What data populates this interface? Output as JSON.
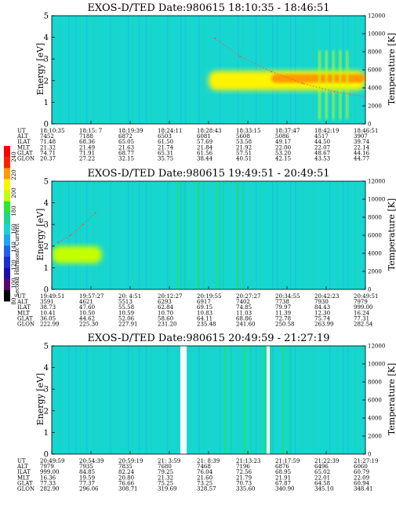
{
  "colorbar": {
    "label": "Second Harmonic Current",
    "ticks": [
      "240",
      "220",
      "200",
      "180",
      "160",
      "140",
      "120",
      "100",
      "80"
    ],
    "colors": [
      "#000000",
      "#5a0070",
      "#1d0bb0",
      "#1b2cd8",
      "#1e60f0",
      "#1aa6f2",
      "#17d6d0",
      "#18d88a",
      "#28e830",
      "#c4ff00",
      "#fff400",
      "#ff9a00",
      "#ff2200",
      "#ff0000"
    ]
  },
  "panels": [
    {
      "title": "EXOS-D/TED   Date:980615  18:10:35 - 18:46:51",
      "ylabel": "Energy [eV]",
      "y2label": "Temperature [K]",
      "yticks": [
        "0",
        "1",
        "2",
        "3",
        "4",
        "5"
      ],
      "y2ticks": [
        "0",
        "2000",
        "4000",
        "6000",
        "8000",
        "10000",
        "12000"
      ],
      "row_labels": [
        "UT",
        "ALT",
        "ILAT",
        "MLT",
        "GLAT",
        "GLON"
      ],
      "columns": [
        [
          "18:10:35",
          "7452",
          "71.48",
          "21.32",
          "74.71",
          "20.37"
        ],
        [
          "18:15: 7",
          "7188",
          "68.36",
          "21.49",
          "71.91",
          "27.22"
        ],
        [
          "18:19:39",
          "6872",
          "65.05",
          "21.63",
          "68.77",
          "32.15"
        ],
        [
          "18:24:11",
          "6503",
          "61.50",
          "21.74",
          "65.31",
          "35.75"
        ],
        [
          "18:28:43",
          "6081",
          "57.69",
          "21.84",
          "61.56",
          "38.44"
        ],
        [
          "18:33:15",
          "5608",
          "53.58",
          "21.92",
          "57.51",
          "40.51"
        ],
        [
          "18:37:47",
          "5086",
          "49.17",
          "22.00",
          "53.20",
          "42.15"
        ],
        [
          "18:42:19",
          "4517",
          "44.50",
          "22.07",
          "48.67",
          "43.53"
        ],
        [
          "18:46:51",
          "3907",
          "39.74",
          "22.14",
          "44.16",
          "44.77"
        ]
      ]
    },
    {
      "title": "EXOS-D/TED   Date:980615  19:49:51 - 20:49:51",
      "ylabel": "Energy [eV]",
      "y2label": "Temperature [K]",
      "yticks": [
        "0",
        "1",
        "2",
        "3",
        "4",
        "5"
      ],
      "y2ticks": [
        "0",
        "2000",
        "4000",
        "6000",
        "8000",
        "10000",
        "12000"
      ],
      "row_labels": [
        "UT",
        "ALT",
        "ILAT",
        "MLT",
        "GLAT",
        "GLON"
      ],
      "columns": [
        [
          "19:49:51",
          "3591",
          "38.73",
          "10.41",
          "36.05",
          "222.99"
        ],
        [
          "19:57:27",
          "4621",
          "47.60",
          "10.50",
          "44.62",
          "225.30"
        ],
        [
          "20: 4:51",
          "5513",
          "55.58",
          "10.59",
          "52.06",
          "227.91"
        ],
        [
          "20:12:27",
          "6293",
          "62.84",
          "10.70",
          "58.60",
          "231.20"
        ],
        [
          "20:19:55",
          "6917",
          "69.15",
          "10.83",
          "64.11",
          "235.48"
        ],
        [
          "20:27:27",
          "7402",
          "74.85",
          "11.03",
          "68.86",
          "241.60"
        ],
        [
          "20:34:55",
          "7738",
          "79.97",
          "11.39",
          "72.78",
          "250.58"
        ],
        [
          "20:42:23",
          "7930",
          "84.43",
          "12.30",
          "75.74",
          "263.99"
        ],
        [
          "20:49:51",
          "7979",
          "999.00",
          "16.24",
          "77.31",
          "282.54"
        ]
      ]
    },
    {
      "title": "EXOS-D/TED   Date:980615  20:49:59 - 21:27:19",
      "ylabel": "Energy [eV]",
      "y2label": "Temperature [K]",
      "yticks": [
        "0",
        "1",
        "2",
        "3",
        "4",
        "5"
      ],
      "y2ticks": [
        "0",
        "2000",
        "4000",
        "6000",
        "8000",
        "10000",
        "12000"
      ],
      "row_labels": [
        "UT",
        "ALT",
        "ILAT",
        "MLT",
        "GLAT",
        "GLON"
      ],
      "columns": [
        [
          "20:49:59",
          "7979",
          "999.00",
          "16.36",
          "77.33",
          "282.90"
        ],
        [
          "20:54:39",
          "7935",
          "84.85",
          "19.59",
          "77.37",
          "296.06"
        ],
        [
          "20:59:19",
          "7835",
          "82.24",
          "20.80",
          "76.66",
          "308.71"
        ],
        [
          "21: 3:59",
          "7680",
          "79.25",
          "21.32",
          "75.25",
          "319.69"
        ],
        [
          "21: 8:39",
          "7468",
          "76.04",
          "21.60",
          "73.25",
          "328.57"
        ],
        [
          "21:13:23",
          "7196",
          "72.56",
          "21.79",
          "70.73",
          "335.60"
        ],
        [
          "21:17:59",
          "6876",
          "68.95",
          "21.91",
          "67.87",
          "340.90"
        ],
        [
          "21:22:39",
          "6496",
          "65.02",
          "22.01",
          "64.58",
          "345.10"
        ],
        [
          "21:27:19",
          "6060",
          "60.79",
          "22.09",
          "60.94",
          "348.41"
        ]
      ]
    }
  ],
  "chart_data": [
    {
      "type": "heatmap",
      "title": "EXOS-D/TED   Date:980615  18:10:35 - 18:46:51",
      "x": [
        "18:10:35",
        "18:15: 7",
        "18:19:39",
        "18:24:11",
        "18:28:43",
        "18:33:15",
        "18:37:47",
        "18:42:19",
        "18:46:51"
      ],
      "ylabel": "Energy [eV]",
      "ylim": [
        0,
        5
      ],
      "y2label": "Temperature [K]",
      "y2lim": [
        0,
        12000
      ],
      "background_level": 150,
      "features": [
        {
          "kind": "band",
          "t_start": 0.5,
          "t_end": 1.0,
          "e_center": 2.0,
          "e_width": 0.9,
          "level": 195
        },
        {
          "kind": "core",
          "t_start": 0.7,
          "t_end": 1.0,
          "e_center": 2.1,
          "e_width": 0.4,
          "level": 215
        },
        {
          "kind": "burst",
          "t_start": 0.85,
          "t_end": 0.96,
          "e_min": 0.2,
          "e_max": 3.4,
          "level": 190
        }
      ],
      "temperature_trace": [
        {
          "t": 0.52,
          "T": 9500
        },
        {
          "t": 0.6,
          "T": 7500
        },
        {
          "t": 0.7,
          "T": 5800
        },
        {
          "t": 0.8,
          "T": 4500
        },
        {
          "t": 0.9,
          "T": 3600
        },
        {
          "t": 1.0,
          "T": 3000
        }
      ]
    },
    {
      "type": "heatmap",
      "title": "EXOS-D/TED   Date:980615  19:49:51 - 20:49:51",
      "x": [
        "19:49:51",
        "19:57:27",
        "20: 4:51",
        "20:12:27",
        "20:19:55",
        "20:27:27",
        "20:34:55",
        "20:42:23",
        "20:49:51"
      ],
      "ylabel": "Energy [eV]",
      "ylim": [
        0,
        5
      ],
      "y2label": "Temperature [K]",
      "y2lim": [
        0,
        12000
      ],
      "background_level": 150,
      "features": [
        {
          "kind": "band",
          "t_start": 0.0,
          "t_end": 0.16,
          "e_center": 1.6,
          "e_width": 0.8,
          "level": 185
        },
        {
          "kind": "streaks",
          "t_start": 0.4,
          "t_end": 0.65,
          "e_min": 0.0,
          "e_max": 5.0,
          "level": 175
        }
      ],
      "temperature_trace": [
        {
          "t": 0.02,
          "T": 5200
        },
        {
          "t": 0.06,
          "T": 6000
        },
        {
          "t": 0.1,
          "T": 7200
        },
        {
          "t": 0.14,
          "T": 8500
        }
      ]
    },
    {
      "type": "heatmap",
      "title": "EXOS-D/TED   Date:980615  20:49:59 - 21:27:19",
      "x": [
        "20:49:59",
        "20:54:39",
        "20:59:19",
        "21: 3:59",
        "21: 8:39",
        "21:13:23",
        "21:17:59",
        "21:22:39",
        "21:27:19"
      ],
      "ylabel": "Energy [eV]",
      "ylim": [
        0,
        5
      ],
      "y2label": "Temperature [K]",
      "y2lim": [
        0,
        12000
      ],
      "background_level": 150,
      "features": [
        {
          "kind": "data_gap",
          "t_start": 0.41,
          "t_end": 0.43
        },
        {
          "kind": "data_gap",
          "t_start": 0.685,
          "t_end": 0.695
        },
        {
          "kind": "streaks",
          "t_start": 0.55,
          "t_end": 0.8,
          "e_min": 0.0,
          "e_max": 5.0,
          "level": 175
        }
      ],
      "temperature_trace": []
    }
  ]
}
